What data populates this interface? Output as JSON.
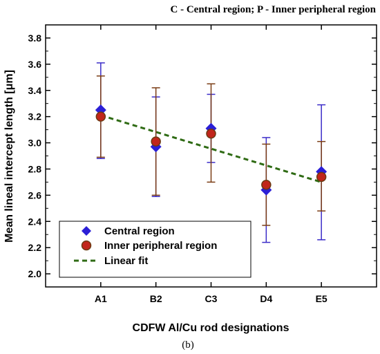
{
  "chart_data": {
    "type": "scatter",
    "title": "C - Central region; P - Inner peripheral region",
    "xlabel": "CDFW Al/Cu rod designations",
    "ylabel": "Mean lineal intercept length [μm]",
    "caption": "(b)",
    "categories": [
      "A1",
      "B2",
      "C3",
      "D4",
      "E5"
    ],
    "ylim": [
      1.9,
      3.9
    ],
    "yticks": [
      "2.0",
      "2.2",
      "2.4",
      "2.6",
      "2.8",
      "3.0",
      "3.2",
      "3.4",
      "3.6",
      "3.8"
    ],
    "grid": false,
    "legend_position": "bottom-left",
    "series": [
      {
        "name": "Central region",
        "marker": "diamond",
        "color": "#2b1fd6",
        "error_color": "#3a2bc8",
        "values": [
          3.25,
          2.97,
          3.11,
          2.64,
          2.78
        ],
        "error_low": [
          2.88,
          2.59,
          2.85,
          2.24,
          2.26
        ],
        "error_high": [
          3.61,
          3.35,
          3.37,
          3.04,
          3.29
        ]
      },
      {
        "name": "Inner peripheral region",
        "marker": "circle",
        "color": "#c1251b",
        "stroke": "#6b3a12",
        "error_color": "#7a3c14",
        "values": [
          3.2,
          3.01,
          3.07,
          2.68,
          2.74
        ],
        "error_low": [
          2.89,
          2.6,
          2.7,
          2.37,
          2.48
        ],
        "error_high": [
          3.51,
          3.42,
          3.45,
          2.99,
          3.01
        ]
      },
      {
        "name": "Linear fit",
        "type": "line",
        "dashed": true,
        "color": "#2f6b14",
        "values": [
          3.21,
          3.09,
          2.96,
          2.83,
          2.7
        ]
      }
    ]
  }
}
